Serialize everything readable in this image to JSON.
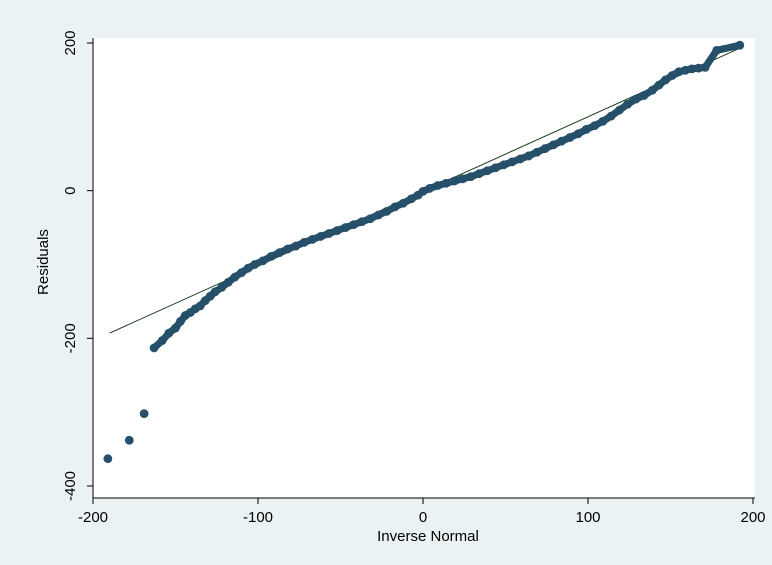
{
  "chart_data": {
    "type": "scatter",
    "title": "",
    "xlabel": "Inverse Normal",
    "ylabel": "Residuals",
    "xlim": [
      -200,
      200
    ],
    "ylim": [
      -400,
      200
    ],
    "xticks": [
      -200,
      -100,
      0,
      100,
      200
    ],
    "yticks": [
      -400,
      -200,
      0,
      200
    ],
    "grid": false,
    "colors": {
      "points": "#26506a",
      "reference_line": "#1a3d1a",
      "plot_background": "#ffffff",
      "figure_background": "#eaf2f3"
    },
    "reference_line": {
      "from": [
        -190,
        -193
      ],
      "to": [
        192,
        193
      ]
    },
    "series": [
      {
        "points": [
          [
            -191,
            -363
          ],
          [
            -178,
            -338
          ],
          [
            -169,
            -302
          ],
          [
            -163,
            -213
          ],
          [
            -158,
            -203
          ],
          [
            -154,
            -193
          ],
          [
            -150,
            -186
          ],
          [
            -147,
            -177
          ],
          [
            -144,
            -169
          ],
          [
            -141,
            -165
          ],
          [
            -138,
            -160
          ],
          [
            -135,
            -156
          ],
          [
            -132,
            -149
          ],
          [
            -129,
            -143
          ],
          [
            -126,
            -137
          ],
          [
            -122,
            -131
          ],
          [
            -118,
            -124
          ],
          [
            -114,
            -117
          ],
          [
            -110,
            -111
          ],
          [
            -106,
            -105
          ],
          [
            -102,
            -100
          ],
          [
            -97,
            -95
          ],
          [
            -92,
            -89
          ],
          [
            -87,
            -84
          ],
          [
            -82,
            -79
          ],
          [
            -77,
            -75
          ],
          [
            -72,
            -70
          ],
          [
            -67,
            -66
          ],
          [
            -62,
            -62
          ],
          [
            -57,
            -58
          ],
          [
            -52,
            -54
          ],
          [
            -47,
            -50
          ],
          [
            -42,
            -46
          ],
          [
            -37,
            -42
          ],
          [
            -32,
            -38
          ],
          [
            -27,
            -33
          ],
          [
            -22,
            -28
          ],
          [
            -17,
            -22
          ],
          [
            -12,
            -17
          ],
          [
            -7,
            -11
          ],
          [
            -3,
            -6
          ],
          [
            0,
            -1
          ],
          [
            4,
            3
          ],
          [
            9,
            7
          ],
          [
            14,
            10
          ],
          [
            19,
            13
          ],
          [
            24,
            16
          ],
          [
            29,
            19
          ],
          [
            34,
            23
          ],
          [
            39,
            27
          ],
          [
            44,
            31
          ],
          [
            49,
            35
          ],
          [
            54,
            39
          ],
          [
            59,
            43
          ],
          [
            64,
            47
          ],
          [
            69,
            52
          ],
          [
            74,
            57
          ],
          [
            79,
            62
          ],
          [
            84,
            67
          ],
          [
            89,
            72
          ],
          [
            94,
            77
          ],
          [
            99,
            83
          ],
          [
            104,
            88
          ],
          [
            109,
            94
          ],
          [
            114,
            101
          ],
          [
            119,
            109
          ],
          [
            124,
            117
          ],
          [
            129,
            124
          ],
          [
            134,
            129
          ],
          [
            139,
            136
          ],
          [
            143,
            143
          ],
          [
            147,
            150
          ],
          [
            151,
            156
          ],
          [
            155,
            161
          ],
          [
            159,
            163
          ],
          [
            163,
            165
          ],
          [
            167,
            166
          ],
          [
            171,
            167
          ],
          [
            178,
            190
          ],
          [
            192,
            197
          ]
        ]
      }
    ]
  }
}
